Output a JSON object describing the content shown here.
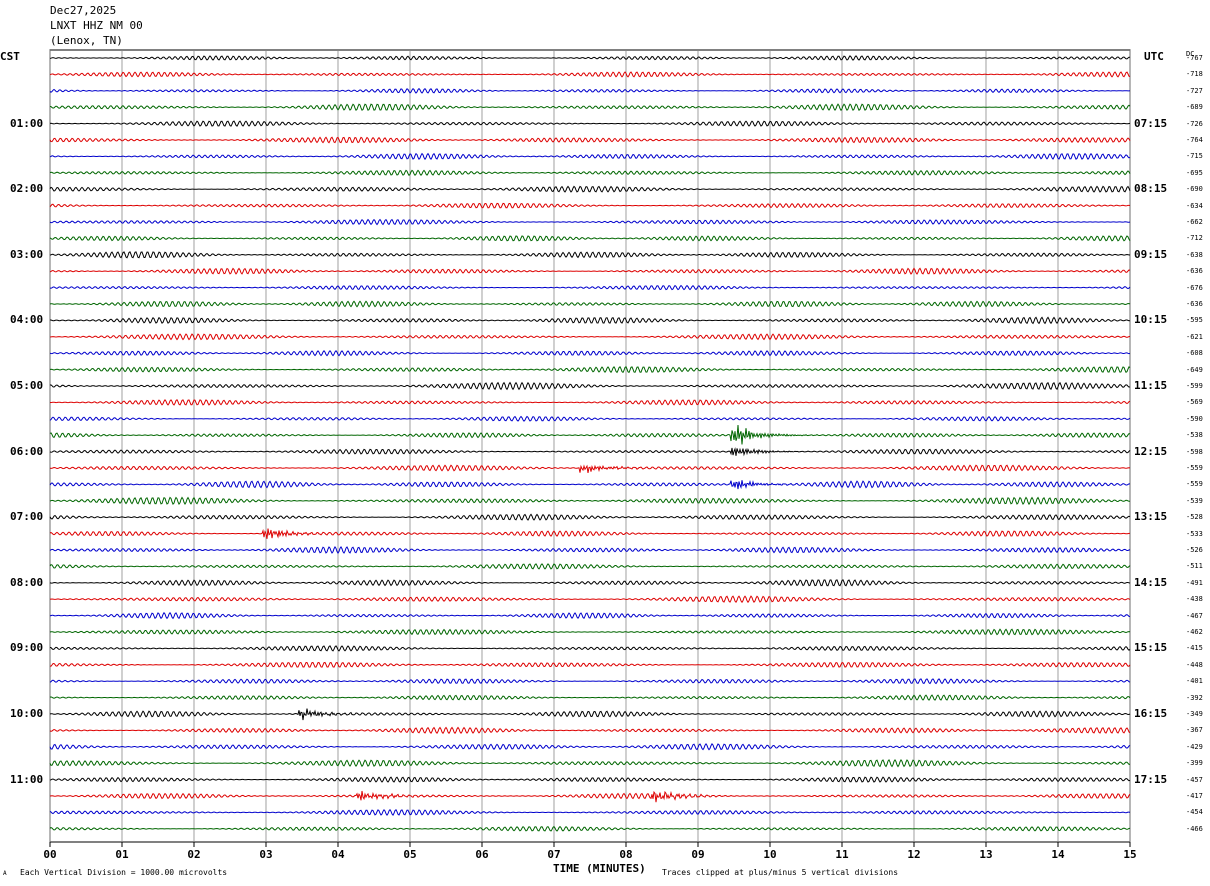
{
  "header": {
    "date": "Dec27,2025",
    "station": "LNXT HHZ NM 00",
    "location": "(Lenox, TN)"
  },
  "left_tz_label": "CST",
  "right_tz_label": "UTC",
  "dc_label": "DC",
  "footer": {
    "scale_note": "Each Vertical Division = 1000.00 microvolts",
    "clip_note": "Traces clipped at plus/minus 5 vertical divisions",
    "small_mark": "A"
  },
  "colors": {
    "trace_cycle": [
      "#000000",
      "#dd0000",
      "#0000cc",
      "#006600"
    ],
    "grid": "#888888"
  },
  "chart_data": {
    "type": "line",
    "title": "",
    "xlabel": "TIME (MINUTES)",
    "ylabel": "",
    "xlim": [
      0,
      15
    ],
    "x_ticks": [
      "00",
      "01",
      "02",
      "03",
      "04",
      "05",
      "06",
      "07",
      "08",
      "09",
      "10",
      "11",
      "12",
      "13",
      "14",
      "15"
    ],
    "trace_minutes": 15,
    "rows": 48,
    "left_hour_labels": [
      "01:00",
      "02:00",
      "03:00",
      "04:00",
      "05:00",
      "06:00",
      "07:00",
      "08:00",
      "09:00",
      "10:00",
      "11:00"
    ],
    "right_hour_labels": [
      "07:15",
      "08:15",
      "09:15",
      "10:15",
      "11:15",
      "12:15",
      "13:15",
      "14:15",
      "15:15",
      "16:15",
      "17:15"
    ],
    "dc_offsets": [
      -767,
      -718,
      -727,
      -689,
      -726,
      -764,
      -715,
      -695,
      -690,
      -634,
      -662,
      -712,
      -638,
      -636,
      -676,
      -636,
      -595,
      -621,
      -608,
      -649,
      -599,
      -569,
      -590,
      -538,
      -598,
      -559,
      -559,
      -539,
      -528,
      -533,
      -526,
      -511,
      -491,
      -438,
      -467,
      -462,
      -415,
      -448,
      -401,
      -392,
      -349,
      -367,
      -429,
      -399,
      -457,
      -417,
      -454,
      -466
    ],
    "events": [
      {
        "row": 23,
        "minute": 9.5,
        "note": "local earthquake burst"
      },
      {
        "row": 24,
        "minute": 9.5
      },
      {
        "row": 25,
        "minute": 7.4
      },
      {
        "row": 26,
        "minute": 9.5
      },
      {
        "row": 29,
        "minute": 3.0
      },
      {
        "row": 40,
        "minute": 3.5
      },
      {
        "row": 45,
        "minute": 4.3
      },
      {
        "row": 45,
        "minute": 8.4
      }
    ]
  }
}
